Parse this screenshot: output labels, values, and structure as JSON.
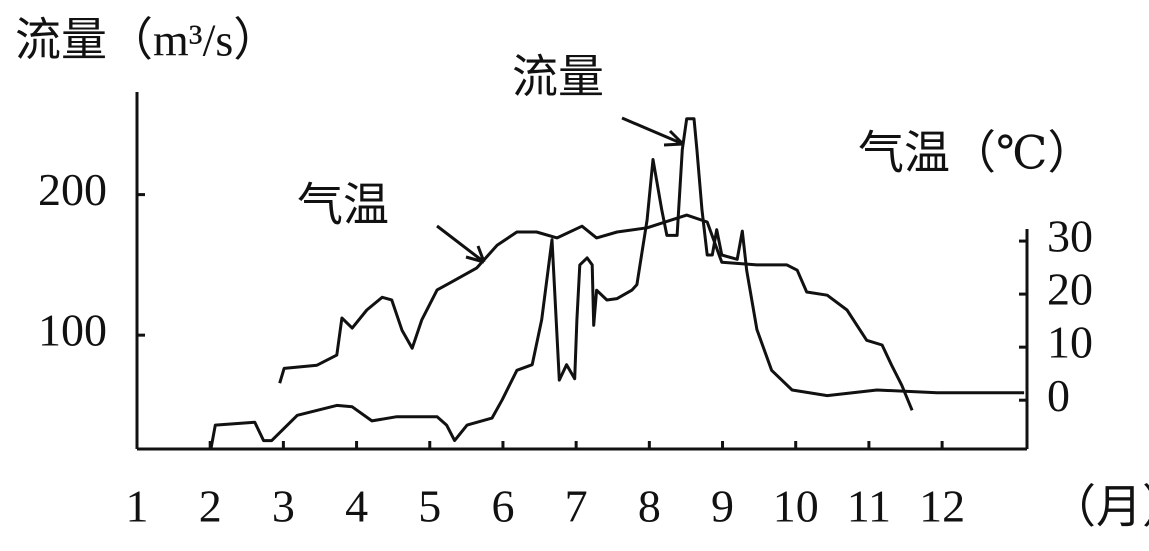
{
  "chart_data": {
    "type": "line",
    "y_label": "流量（m³/s）",
    "y2_label": "气温（℃）",
    "x_unit": "（月）",
    "xlim": [
      1,
      13.16
    ],
    "xticks": [
      1,
      2,
      3,
      4,
      5,
      6,
      7,
      8,
      9,
      10,
      11,
      12
    ],
    "ylim": [
      19,
      273
    ],
    "yticks": [
      100,
      200
    ],
    "y2lim": [
      -9.2,
      58.1
    ],
    "y2ticks": [
      0,
      10,
      20,
      30
    ],
    "series": [
      {
        "name": "流量",
        "color": "#111111",
        "x": [
          2.01,
          2.07,
          2.61,
          2.73,
          2.84,
          3.19,
          3.73,
          3.94,
          4.21,
          4.55,
          5.1,
          5.23,
          5.34,
          5.51,
          5.85,
          5.99,
          6.19,
          6.4,
          6.53,
          6.67,
          6.77,
          6.87,
          6.98,
          7.01,
          7.05,
          7.15,
          7.22,
          7.24,
          7.28,
          7.42,
          7.56,
          7.76,
          7.83,
          7.97,
          8.05,
          8.17,
          8.24,
          8.38,
          8.45,
          8.51,
          8.61,
          8.65,
          8.72,
          8.79,
          8.86,
          8.92,
          8.99,
          9.2,
          9.27,
          9.33,
          9.47,
          9.67,
          9.95,
          10.43,
          11.11,
          11.93,
          13.12
        ],
        "values": [
          19,
          36,
          38,
          25,
          25,
          43,
          50,
          49,
          39,
          42,
          42,
          36,
          25,
          36,
          41,
          54,
          75,
          79,
          111,
          168,
          68,
          79,
          69,
          111,
          150,
          155,
          150,
          107,
          132,
          125,
          126,
          132,
          136,
          182,
          225,
          189,
          171,
          171,
          232,
          254,
          254,
          232,
          189,
          157,
          157,
          175,
          157,
          154,
          174,
          146,
          104,
          75,
          61,
          57,
          61,
          59,
          59
        ]
      },
      {
        "name": "气温",
        "color": "#111111",
        "axis": "y2",
        "x": [
          2.95,
          3.01,
          3.46,
          3.73,
          3.8,
          3.94,
          4.14,
          4.35,
          4.48,
          4.62,
          4.76,
          4.89,
          5.1,
          5.3,
          5.64,
          5.92,
          6.19,
          6.46,
          6.74,
          7.08,
          7.28,
          7.56,
          7.97,
          8.51,
          8.79,
          8.99,
          9.47,
          9.88,
          10.02,
          10.15,
          10.43,
          10.7,
          10.97,
          11.18,
          11.31,
          11.45,
          11.59
        ],
        "values": [
          3.2,
          6.0,
          6.6,
          8.5,
          15.5,
          13.6,
          17.0,
          19.4,
          18.9,
          13.2,
          9.8,
          15.1,
          20.8,
          22.3,
          24.9,
          29.2,
          31.7,
          31.7,
          30.6,
          32.8,
          30.6,
          31.7,
          32.5,
          34.9,
          33.6,
          26.0,
          25.5,
          25.5,
          24.5,
          20.4,
          19.8,
          17.0,
          11.3,
          10.4,
          6.6,
          2.8,
          -1.9
        ]
      }
    ]
  }
}
